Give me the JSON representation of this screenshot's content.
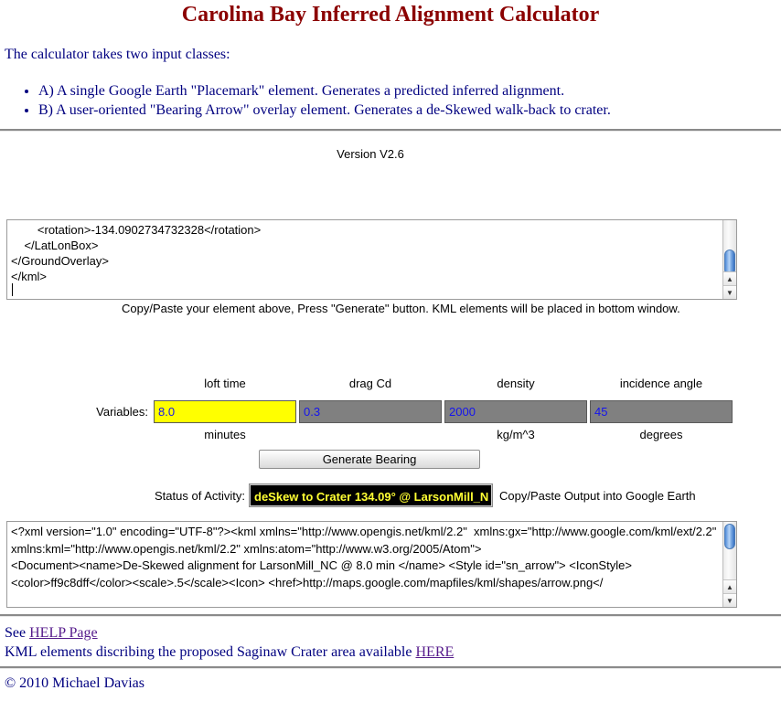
{
  "page": {
    "title": "Carolina Bay Inferred Alignment Calculator",
    "intro": "The calculator takes two input classes:",
    "bullets": [
      "A) A single Google Earth \"Placemark\" element. Generates a predicted inferred alignment.",
      "B) A user-oriented \"Bearing Arrow\" overlay element. Generates a de-Skewed walk-back to crater."
    ],
    "version": "Version V2.6"
  },
  "input_area": {
    "content": "        <rotation>-134.0902734732328</rotation>\n    </LatLonBox>\n</GroundOverlay>\n</kml>",
    "caption": "Copy/Paste your element above, Press \"Generate\" button. KML elements will be placed in bottom window."
  },
  "variables": {
    "label": "Variables:",
    "fields": [
      {
        "name": "loft time",
        "value": "8.0",
        "unit": "minutes",
        "bg": "#ffff00"
      },
      {
        "name": "drag Cd",
        "value": "0.3",
        "unit": "",
        "bg": "#808080"
      },
      {
        "name": "density",
        "value": "2000",
        "unit": "kg/m^3",
        "bg": "#808080"
      },
      {
        "name": "incidence angle",
        "value": "45",
        "unit": "degrees",
        "bg": "#808080"
      }
    ]
  },
  "actions": {
    "generate_button": "Generate Bearing"
  },
  "status": {
    "label": "Status of Activity:",
    "value": "deSkew to Crater 134.09° @ LarsonMill_N",
    "note": "Copy/Paste Output into Google Earth"
  },
  "output_area": {
    "content": "<?xml version=\"1.0\" encoding=\"UTF-8\"?><kml xmlns=\"http://www.opengis.net/kml/2.2\"  xmlns:gx=\"http://www.google.com/kml/ext/2.2\" xmlns:kml=\"http://www.opengis.net/kml/2.2\" xmlns:atom=\"http://www.w3.org/2005/Atom\">\n<Document><name>De-Skewed alignment for LarsonMill_NC @ 8.0 min </name> <Style id=\"sn_arrow\"> <IconStyle> <color>ff9c8dff</color><scale>.5</scale><Icon> <href>http://maps.google.com/mapfiles/kml/shapes/arrow.png</"
  },
  "footer": {
    "see": "See",
    "help_link": "HELP Page",
    "kml_text": "KML elements discribing the proposed Saginaw Crater area available",
    "here_link": "HERE",
    "copyright": "© 2010 Michael Davias"
  },
  "icons": {
    "scroll_up": "▲",
    "scroll_down": "▼"
  },
  "colors": {
    "title": "#8b0000",
    "body_text": "#000080",
    "link": "#551a8b",
    "field_value": "#1414ee",
    "loft_time_bg": "#ffff00",
    "field_bg": "#808080",
    "status_bg": "#000000",
    "status_text": "#ffff33"
  }
}
